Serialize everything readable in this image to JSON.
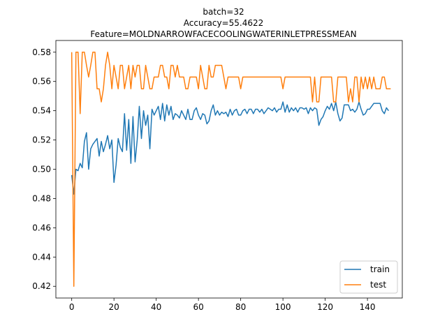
{
  "chart_data": {
    "type": "line",
    "title_lines": [
      "batch=32",
      "Accuracy=55.4622",
      "Feature=MOLDNARROWFACECOOLINGWATERINLETPRESSMEAN"
    ],
    "xlabel": "",
    "ylabel": "",
    "xlim": [
      -7.5,
      156.5
    ],
    "ylim": [
      0.412,
      0.588
    ],
    "xticks": [
      0,
      20,
      40,
      60,
      80,
      100,
      120,
      140
    ],
    "yticks": [
      0.42,
      0.44,
      0.46,
      0.48,
      0.5,
      0.52,
      0.54,
      0.56,
      0.58
    ],
    "ytick_labels": [
      "0.42",
      "0.44",
      "0.46",
      "0.48",
      "0.50",
      "0.52",
      "0.54",
      "0.56",
      "0.58"
    ],
    "grid": false,
    "legend_position": "lower-right",
    "series": [
      {
        "name": "train",
        "color": "#1f77b4",
        "values": [
          0.496,
          0.483,
          0.5,
          0.499,
          0.504,
          0.501,
          0.519,
          0.525,
          0.5,
          0.514,
          0.517,
          0.519,
          0.521,
          0.509,
          0.519,
          0.512,
          0.517,
          0.523,
          0.514,
          0.52,
          0.491,
          0.503,
          0.521,
          0.515,
          0.512,
          0.538,
          0.513,
          0.534,
          0.504,
          0.536,
          0.505,
          0.52,
          0.543,
          0.521,
          0.54,
          0.53,
          0.537,
          0.514,
          0.541,
          0.537,
          0.54,
          0.543,
          0.534,
          0.545,
          0.533,
          0.544,
          0.537,
          0.543,
          0.534,
          0.538,
          0.537,
          0.535,
          0.54,
          0.537,
          0.534,
          0.541,
          0.534,
          0.534,
          0.54,
          0.542,
          0.537,
          0.534,
          0.538,
          0.537,
          0.531,
          0.533,
          0.54,
          0.544,
          0.537,
          0.54,
          0.537,
          0.539,
          0.538,
          0.539,
          0.536,
          0.541,
          0.537,
          0.54,
          0.541,
          0.537,
          0.537,
          0.54,
          0.541,
          0.538,
          0.541,
          0.541,
          0.538,
          0.541,
          0.541,
          0.539,
          0.541,
          0.538,
          0.54,
          0.542,
          0.541,
          0.54,
          0.542,
          0.539,
          0.541,
          0.541,
          0.546,
          0.539,
          0.544,
          0.539,
          0.542,
          0.54,
          0.542,
          0.539,
          0.542,
          0.542,
          0.541,
          0.542,
          0.538,
          0.542,
          0.54,
          0.542,
          0.541,
          0.53,
          0.534,
          0.536,
          0.54,
          0.543,
          0.541,
          0.545,
          0.54,
          0.546,
          0.538,
          0.533,
          0.535,
          0.544,
          0.544,
          0.544,
          0.54,
          0.541,
          0.539,
          0.541,
          0.546,
          0.541,
          0.537,
          0.538,
          0.541,
          0.541,
          0.543,
          0.545,
          0.545,
          0.545,
          0.545,
          0.54,
          0.538,
          0.542,
          0.54
        ]
      },
      {
        "name": "test",
        "color": "#ff7f0e",
        "values": [
          0.58,
          0.42,
          0.58,
          0.58,
          0.538,
          0.58,
          0.58,
          0.571,
          0.563,
          0.571,
          0.58,
          0.58,
          0.555,
          0.555,
          0.546,
          0.555,
          0.571,
          0.58,
          0.571,
          0.555,
          0.571,
          0.563,
          0.555,
          0.571,
          0.571,
          0.555,
          0.563,
          0.571,
          0.555,
          0.571,
          0.563,
          0.571,
          0.571,
          0.555,
          0.555,
          0.571,
          0.563,
          0.555,
          0.555,
          0.563,
          0.563,
          0.563,
          0.571,
          0.571,
          0.563,
          0.563,
          0.555,
          0.571,
          0.571,
          0.563,
          0.571,
          0.563,
          0.563,
          0.563,
          0.555,
          0.555,
          0.563,
          0.563,
          0.563,
          0.563,
          0.555,
          0.571,
          0.563,
          0.555,
          0.555,
          0.571,
          0.563,
          0.563,
          0.571,
          0.571,
          0.571,
          0.571,
          0.563,
          0.555,
          0.563,
          0.563,
          0.563,
          0.563,
          0.563,
          0.563,
          0.555,
          0.563,
          0.563,
          0.563,
          0.563,
          0.563,
          0.563,
          0.563,
          0.563,
          0.563,
          0.563,
          0.563,
          0.563,
          0.563,
          0.563,
          0.563,
          0.563,
          0.563,
          0.563,
          0.563,
          0.555,
          0.563,
          0.563,
          0.563,
          0.563,
          0.563,
          0.563,
          0.563,
          0.563,
          0.563,
          0.563,
          0.563,
          0.563,
          0.563,
          0.546,
          0.563,
          0.546,
          0.546,
          0.563,
          0.563,
          0.563,
          0.563,
          0.563,
          0.563,
          0.546,
          0.546,
          0.563,
          0.563,
          0.563,
          0.563,
          0.563,
          0.546,
          0.555,
          0.546,
          0.563,
          0.563,
          0.546,
          0.563,
          0.555,
          0.563,
          0.555,
          0.563,
          0.555,
          0.563,
          0.555,
          0.555,
          0.555,
          0.563,
          0.563,
          0.555,
          0.555,
          0.555
        ]
      }
    ]
  }
}
